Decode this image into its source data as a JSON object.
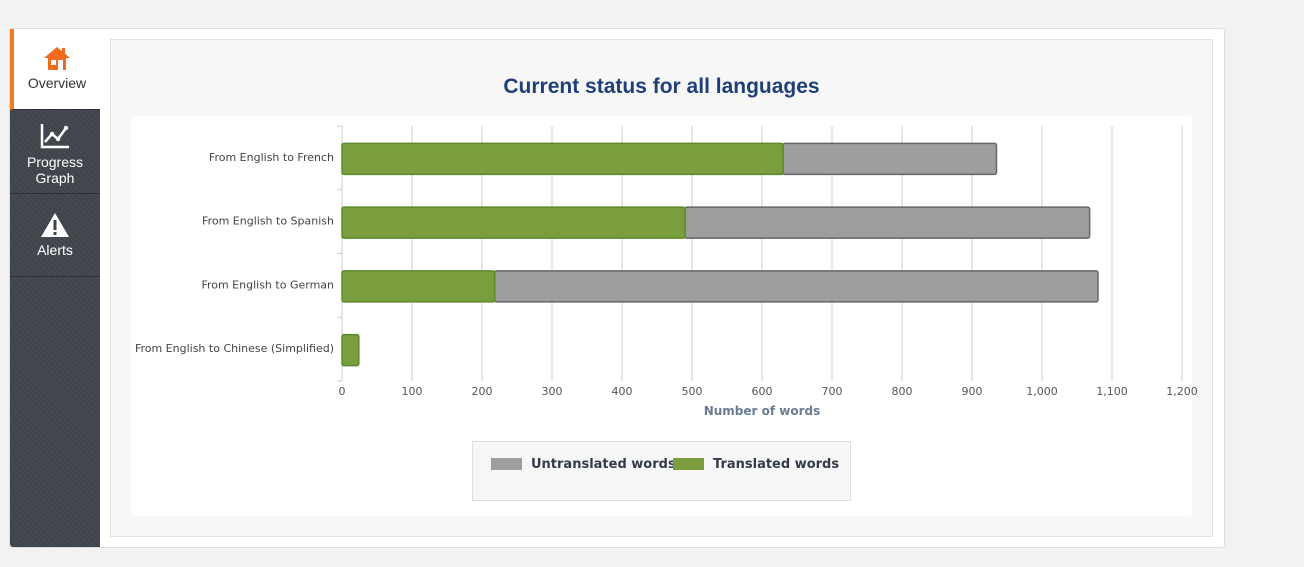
{
  "nav": {
    "items": [
      {
        "label": "Overview",
        "icon": "home-icon",
        "active": true
      },
      {
        "label_line1": "Progress",
        "label_line2": "Graph",
        "icon": "line-chart-icon"
      },
      {
        "label": "Alerts",
        "icon": "warning-icon"
      }
    ],
    "accent_color": "#f47c20"
  },
  "colors": {
    "translated": "#7a9e3d",
    "untranslated": "#9e9e9e",
    "title": "#1f3f7a"
  },
  "chart_data": {
    "type": "bar",
    "orientation": "horizontal",
    "stacked": true,
    "title": "Current status for all languages",
    "xlabel": "Number of words",
    "categories": [
      "From English to French",
      "From English to Spanish",
      "From English to German",
      "From English to Chinese (Simplified)"
    ],
    "series": [
      {
        "name": "Translated words",
        "values": [
          630,
          490,
          218,
          24
        ],
        "color": "#7a9e3d"
      },
      {
        "name": "Untranslated words",
        "values": [
          305,
          578,
          862,
          0
        ],
        "color": "#9e9e9e"
      }
    ],
    "xlim": [
      0,
      1200
    ],
    "xticks": [
      0,
      100,
      200,
      300,
      400,
      500,
      600,
      700,
      800,
      900,
      1000,
      1100,
      1200
    ],
    "xtick_labels": [
      "0",
      "100",
      "200",
      "300",
      "400",
      "500",
      "600",
      "700",
      "800",
      "900",
      "1,000",
      "1,100",
      "1,200"
    ],
    "legend_order": [
      "Untranslated words",
      "Translated words"
    ],
    "legend_position": "bottom",
    "grid": true
  }
}
